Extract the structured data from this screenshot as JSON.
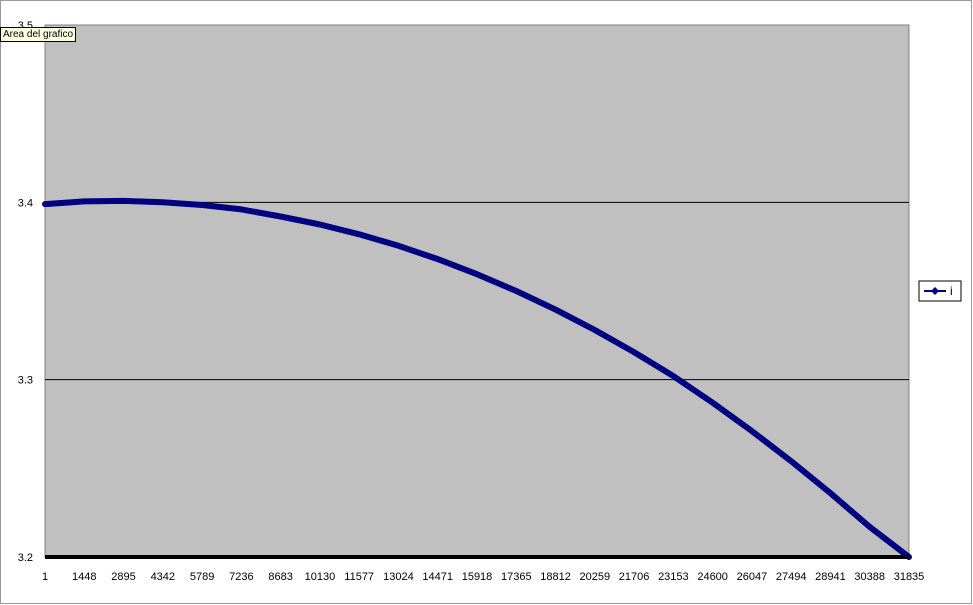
{
  "tooltip": {
    "text": "Area del grafico"
  },
  "chart_data": {
    "type": "line",
    "title": "",
    "xlabel": "",
    "ylabel": "",
    "ylim": [
      3.2,
      3.5
    ],
    "y_ticks": [
      "3.2",
      "3.3",
      "3.4",
      "3.5"
    ],
    "x_tick_labels": [
      "1",
      "1448",
      "2895",
      "4342",
      "5789",
      "7236",
      "8683",
      "10130",
      "11577",
      "13024",
      "14471",
      "15918",
      "17365",
      "18812",
      "20259",
      "21706",
      "23153",
      "24600",
      "26047",
      "27494",
      "28941",
      "30388",
      "31835"
    ],
    "grid": true,
    "legend_position": "right",
    "plot_background": "#c0c0c0",
    "line_color": "#000080",
    "series": [
      {
        "name": "i",
        "x": [
          1,
          1448,
          2895,
          4342,
          5789,
          7236,
          8683,
          10130,
          11577,
          13024,
          14471,
          15918,
          17365,
          18812,
          20259,
          21706,
          23153,
          24600,
          26047,
          27494,
          28941,
          30388,
          31835
        ],
        "values": [
          3.399,
          3.4005,
          3.4008,
          3.4,
          3.3985,
          3.396,
          3.392,
          3.3875,
          3.382,
          3.3755,
          3.368,
          3.3595,
          3.35,
          3.3395,
          3.328,
          3.3155,
          3.302,
          3.287,
          3.271,
          3.254,
          3.236,
          3.217,
          3.2
        ]
      }
    ]
  }
}
